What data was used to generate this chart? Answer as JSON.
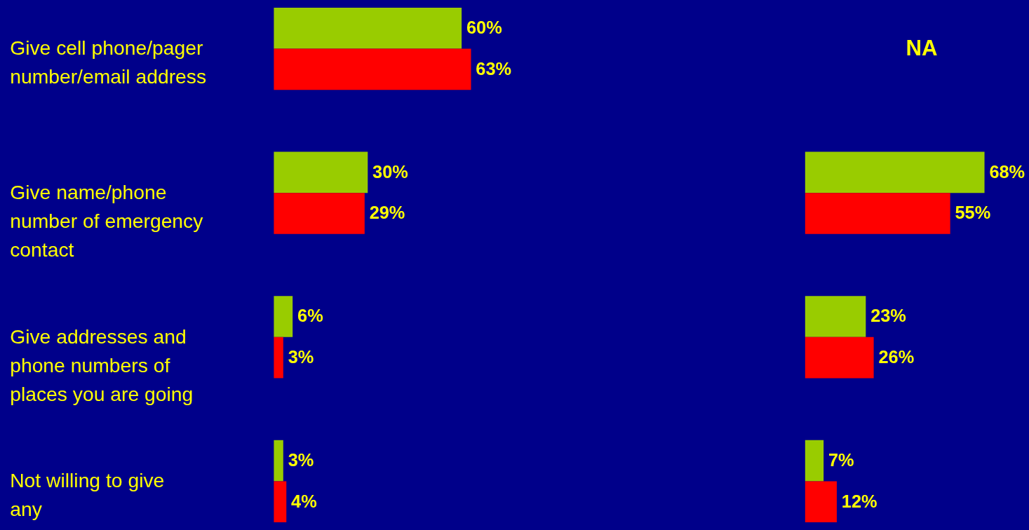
{
  "chart_data": [
    {
      "type": "bar",
      "orientation": "horizontal",
      "categories": [
        "Give cell phone/pager number/email address",
        "Give name/phone number of emergency contact",
        "Give addresses and phone numbers of places you are going",
        "Not willing to give any"
      ],
      "series": [
        {
          "color": "#99cc00",
          "values": [
            60,
            30,
            6,
            3
          ],
          "value_labels": [
            "60%",
            "30%",
            "6%",
            "3%"
          ]
        },
        {
          "color": "#ff0000",
          "values": [
            63,
            29,
            3,
            4
          ],
          "value_labels": [
            "63%",
            "29%",
            "3%",
            "4%"
          ]
        }
      ]
    },
    {
      "type": "bar",
      "orientation": "horizontal",
      "categories": [
        null,
        null,
        null,
        null
      ],
      "series": [
        {
          "color": "#99cc00",
          "values": [
            null,
            68,
            23,
            7
          ],
          "value_labels": [
            null,
            "68%",
            "23%",
            "7%"
          ]
        },
        {
          "color": "#ff0000",
          "values": [
            null,
            55,
            26,
            12
          ],
          "value_labels": [
            null,
            "55%",
            "26%",
            "12%"
          ]
        }
      ],
      "annotations": [
        "NA"
      ]
    }
  ]
}
